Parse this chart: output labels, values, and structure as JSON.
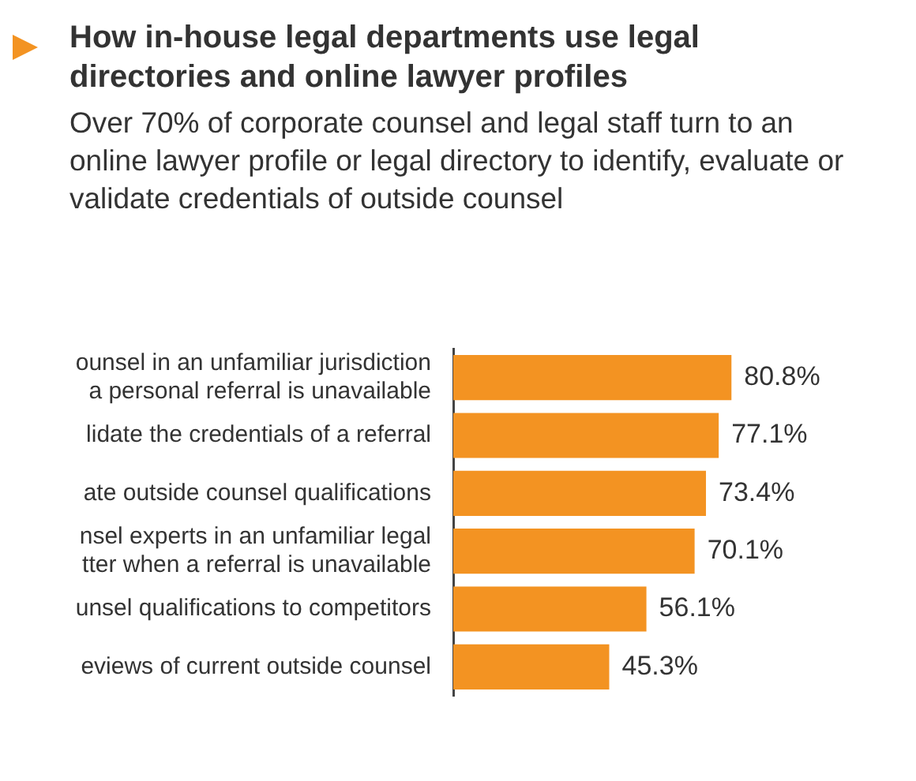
{
  "chart_data": {
    "type": "bar",
    "orientation": "horizontal",
    "title": "How in-house legal departments use legal directories and online lawyer profiles",
    "subtitle": "Over 70% of corporate counsel and legal staff turn to an online lawyer profile or legal directory to identify, evaluate or validate credentials of outside counsel",
    "categories": [
      "ounsel in an unfamiliar jurisdiction\na personal referral is unavailable",
      "lidate the credentials of a referral",
      "ate outside counsel qualifications",
      "nsel experts in an unfamiliar legal\ntter when a referral is unavailable",
      "unsel qualifications to competitors",
      "eviews of current outside counsel"
    ],
    "values": [
      80.8,
      77.1,
      73.4,
      70.1,
      56.1,
      45.3
    ],
    "value_labels": [
      "80.8%",
      "77.1%",
      "73.4%",
      "70.1%",
      "56.1%",
      "45.3%"
    ],
    "color": "#f39322",
    "legend": false
  }
}
